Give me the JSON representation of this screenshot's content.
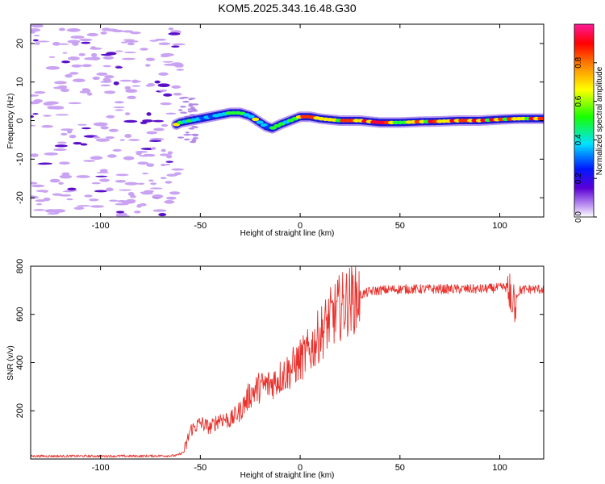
{
  "title": "KOM5.2025.343.16.48.G30",
  "chart_data": [
    {
      "type": "heatmap",
      "xlabel": "Height of straight line (km)",
      "ylabel": "Frequency (Hz)",
      "xlim": [
        -135,
        122
      ],
      "ylim": [
        -25,
        25
      ],
      "xticks": [
        -100,
        -50,
        0,
        50,
        100
      ],
      "yticks": [
        -20,
        -10,
        0,
        10,
        20
      ],
      "colorbar_label": "Normalized spectral amplitude",
      "colorbar_range": [
        0,
        1
      ],
      "colorbar_ticks": [
        "0.0",
        "0.2",
        "0.4",
        "0.6",
        "0.8"
      ],
      "ridge": [
        {
          "x": -62,
          "y": -1
        },
        {
          "x": -60,
          "y": -0.5
        },
        {
          "x": -55,
          "y": 0
        },
        {
          "x": -50,
          "y": 0.5
        },
        {
          "x": -45,
          "y": 1
        },
        {
          "x": -40,
          "y": 1.5
        },
        {
          "x": -35,
          "y": 2
        },
        {
          "x": -30,
          "y": 2
        },
        {
          "x": -25,
          "y": 1.2
        },
        {
          "x": -20,
          "y": -0.5
        },
        {
          "x": -17,
          "y": -1.5
        },
        {
          "x": -14,
          "y": -2
        },
        {
          "x": -10,
          "y": -1
        },
        {
          "x": -5,
          "y": 0
        },
        {
          "x": 0,
          "y": 1
        },
        {
          "x": 5,
          "y": 1
        },
        {
          "x": 10,
          "y": 0.5
        },
        {
          "x": 20,
          "y": 0
        },
        {
          "x": 30,
          "y": 0
        },
        {
          "x": 40,
          "y": -0.5
        },
        {
          "x": 50,
          "y": -0.5
        },
        {
          "x": 60,
          "y": -0.3
        },
        {
          "x": 70,
          "y": -0.2
        },
        {
          "x": 80,
          "y": 0
        },
        {
          "x": 90,
          "y": 0
        },
        {
          "x": 100,
          "y": 0.3
        },
        {
          "x": 110,
          "y": 0.5
        },
        {
          "x": 122,
          "y": 0.5
        }
      ],
      "noise_region_x": [
        -135,
        -62
      ]
    },
    {
      "type": "line",
      "xlabel": "Height of straight line (km)",
      "ylabel": "SNR (v/v)",
      "xlim": [
        -135,
        122
      ],
      "ylim": [
        0,
        800
      ],
      "xticks": [
        -100,
        -50,
        0,
        50,
        100
      ],
      "yticks": [
        200,
        400,
        600,
        800
      ],
      "color": "#e8322d",
      "series": [
        {
          "name": "SNR",
          "x": [
            -135,
            -100,
            -80,
            -62,
            -58,
            -55,
            -50,
            -45,
            -40,
            -35,
            -30,
            -25,
            -20,
            -15,
            -10,
            -5,
            0,
            5,
            10,
            15,
            20,
            25,
            30,
            35,
            40,
            50,
            60,
            70,
            80,
            90,
            100,
            105,
            107,
            110,
            115,
            122
          ],
          "y": [
            12,
            12,
            12,
            14,
            30,
            120,
            150,
            130,
            170,
            160,
            200,
            270,
            300,
            310,
            340,
            370,
            410,
            450,
            520,
            580,
            630,
            660,
            680,
            695,
            700,
            705,
            705,
            705,
            705,
            705,
            710,
            715,
            660,
            700,
            705,
            705
          ]
        }
      ]
    }
  ]
}
